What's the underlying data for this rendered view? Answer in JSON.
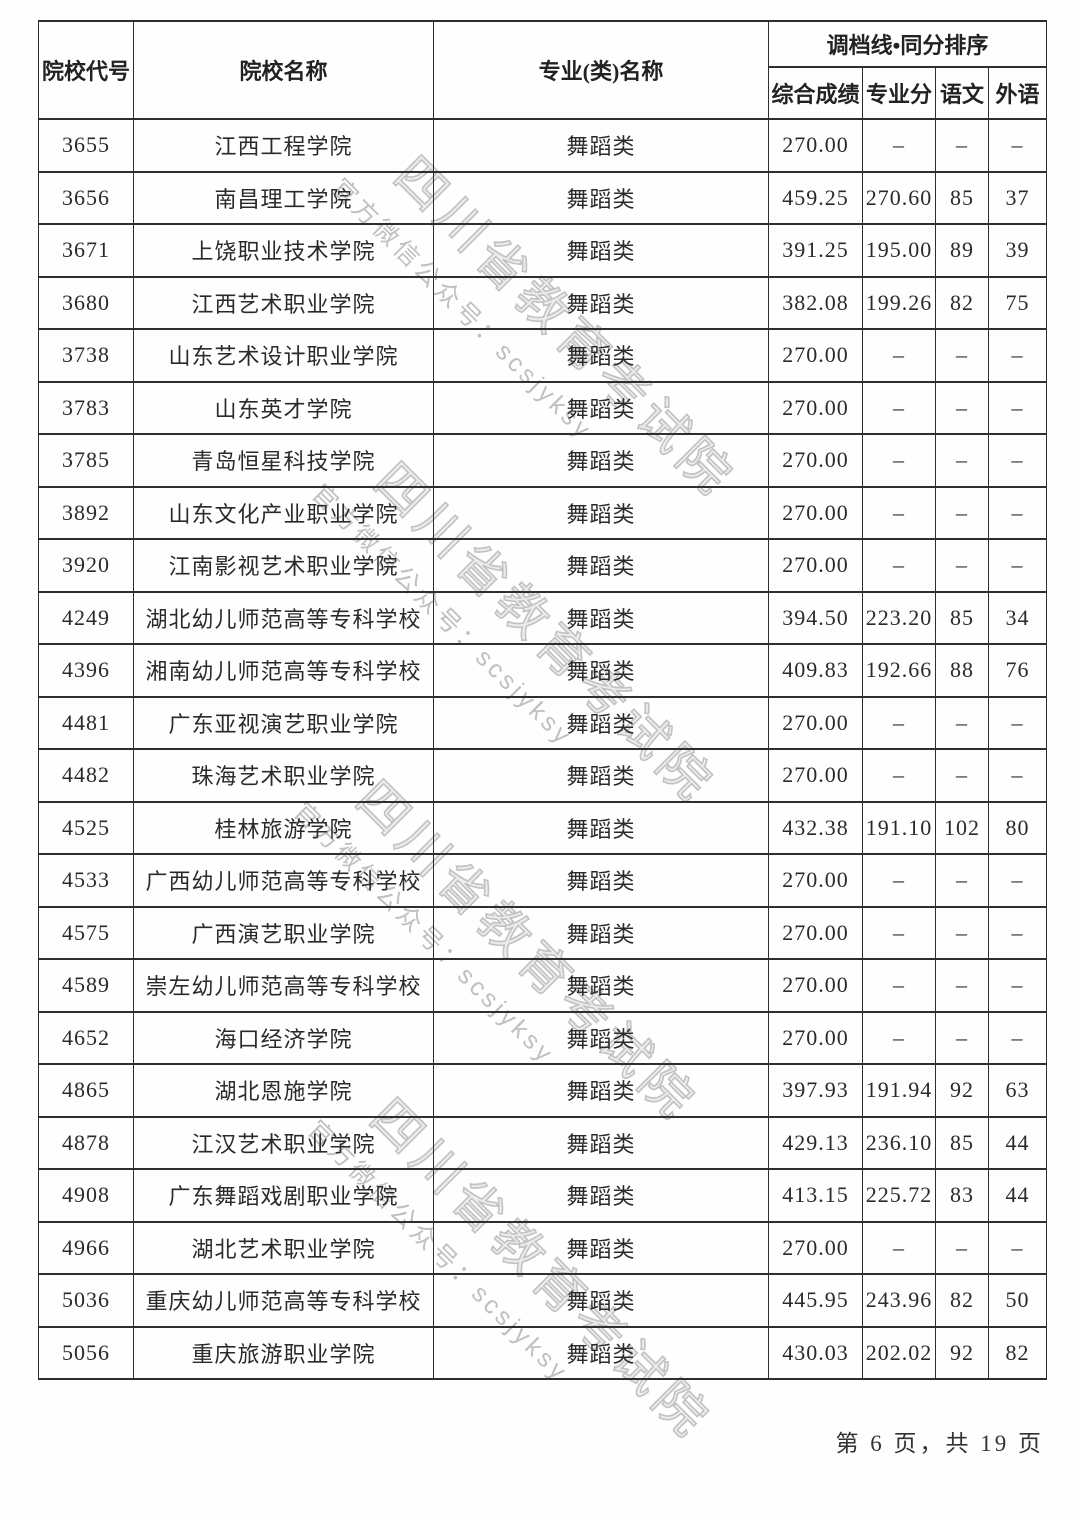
{
  "table": {
    "columns": [
      "院校代号",
      "院校名称",
      "专业(类)名称"
    ],
    "group_header": "调档线•同分排序",
    "sub_columns": [
      "综合成绩",
      "专业分",
      "语文",
      "外语"
    ],
    "rows": [
      [
        "3655",
        "江西工程学院",
        "舞蹈类",
        "270.00",
        "–",
        "–",
        "–"
      ],
      [
        "3656",
        "南昌理工学院",
        "舞蹈类",
        "459.25",
        "270.60",
        "85",
        "37"
      ],
      [
        "3671",
        "上饶职业技术学院",
        "舞蹈类",
        "391.25",
        "195.00",
        "89",
        "39"
      ],
      [
        "3680",
        "江西艺术职业学院",
        "舞蹈类",
        "382.08",
        "199.26",
        "82",
        "75"
      ],
      [
        "3738",
        "山东艺术设计职业学院",
        "舞蹈类",
        "270.00",
        "–",
        "–",
        "–"
      ],
      [
        "3783",
        "山东英才学院",
        "舞蹈类",
        "270.00",
        "–",
        "–",
        "–"
      ],
      [
        "3785",
        "青岛恒星科技学院",
        "舞蹈类",
        "270.00",
        "–",
        "–",
        "–"
      ],
      [
        "3892",
        "山东文化产业职业学院",
        "舞蹈类",
        "270.00",
        "–",
        "–",
        "–"
      ],
      [
        "3920",
        "江南影视艺术职业学院",
        "舞蹈类",
        "270.00",
        "–",
        "–",
        "–"
      ],
      [
        "4249",
        "湖北幼儿师范高等专科学校",
        "舞蹈类",
        "394.50",
        "223.20",
        "85",
        "34"
      ],
      [
        "4396",
        "湘南幼儿师范高等专科学校",
        "舞蹈类",
        "409.83",
        "192.66",
        "88",
        "76"
      ],
      [
        "4481",
        "广东亚视演艺职业学院",
        "舞蹈类",
        "270.00",
        "–",
        "–",
        "–"
      ],
      [
        "4482",
        "珠海艺术职业学院",
        "舞蹈类",
        "270.00",
        "–",
        "–",
        "–"
      ],
      [
        "4525",
        "桂林旅游学院",
        "舞蹈类",
        "432.38",
        "191.10",
        "102",
        "80"
      ],
      [
        "4533",
        "广西幼儿师范高等专科学校",
        "舞蹈类",
        "270.00",
        "–",
        "–",
        "–"
      ],
      [
        "4575",
        "广西演艺职业学院",
        "舞蹈类",
        "270.00",
        "–",
        "–",
        "–"
      ],
      [
        "4589",
        "崇左幼儿师范高等专科学校",
        "舞蹈类",
        "270.00",
        "–",
        "–",
        "–"
      ],
      [
        "4652",
        "海口经济学院",
        "舞蹈类",
        "270.00",
        "–",
        "–",
        "–"
      ],
      [
        "4865",
        "湖北恩施学院",
        "舞蹈类",
        "397.93",
        "191.94",
        "92",
        "63"
      ],
      [
        "4878",
        "江汉艺术职业学院",
        "舞蹈类",
        "429.13",
        "236.10",
        "85",
        "44"
      ],
      [
        "4908",
        "广东舞蹈戏剧职业学院",
        "舞蹈类",
        "413.15",
        "225.72",
        "83",
        "44"
      ],
      [
        "4966",
        "湖北艺术职业学院",
        "舞蹈类",
        "270.00",
        "–",
        "–",
        "–"
      ],
      [
        "5036",
        "重庆幼儿师范高等专科学校",
        "舞蹈类",
        "445.95",
        "243.96",
        "82",
        "50"
      ],
      [
        "5056",
        "重庆旅游职业学院",
        "舞蹈类",
        "430.03",
        "202.02",
        "92",
        "82"
      ]
    ]
  },
  "watermark": {
    "line1": "四川省教育考试院",
    "line2": "官方微信公众号：scsjyksy"
  },
  "footer": {
    "page_label": "第 6 页，共 19 页"
  },
  "colors": {
    "border": "#2e2e2e",
    "text": "#2a2a2a",
    "watermark": "#c2c2c2",
    "background": "#fefefe"
  }
}
